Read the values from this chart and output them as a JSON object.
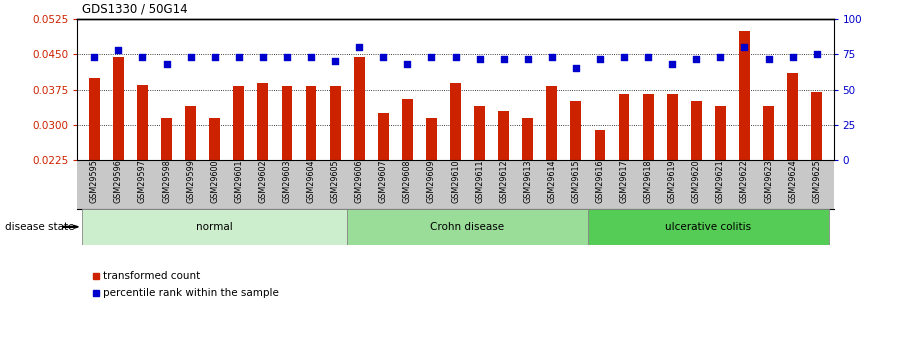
{
  "title": "GDS1330 / 50G14",
  "samples": [
    "GSM29595",
    "GSM29596",
    "GSM29597",
    "GSM29598",
    "GSM29599",
    "GSM29600",
    "GSM29601",
    "GSM29602",
    "GSM29603",
    "GSM29604",
    "GSM29605",
    "GSM29606",
    "GSM29607",
    "GSM29608",
    "GSM29609",
    "GSM29610",
    "GSM29611",
    "GSM29612",
    "GSM29613",
    "GSM29614",
    "GSM29615",
    "GSM29616",
    "GSM29617",
    "GSM29618",
    "GSM29619",
    "GSM29620",
    "GSM29621",
    "GSM29622",
    "GSM29623",
    "GSM29624",
    "GSM29625"
  ],
  "bar_values": [
    0.04,
    0.0445,
    0.0385,
    0.0315,
    0.034,
    0.0315,
    0.0383,
    0.039,
    0.0383,
    0.0383,
    0.0383,
    0.0445,
    0.0325,
    0.0355,
    0.0315,
    0.039,
    0.034,
    0.033,
    0.0315,
    0.0383,
    0.035,
    0.029,
    0.0365,
    0.0365,
    0.0365,
    0.035,
    0.034,
    0.05,
    0.034,
    0.041,
    0.037
  ],
  "dot_values": [
    73,
    78,
    73,
    68,
    73,
    73,
    73,
    73,
    73,
    73,
    70,
    80,
    73,
    68,
    73,
    73,
    72,
    72,
    72,
    73,
    65,
    72,
    73,
    73,
    68,
    72,
    73,
    80,
    72,
    73,
    75
  ],
  "groups": [
    {
      "label": "normal",
      "start": 0,
      "end": 10,
      "color": "#cceecc"
    },
    {
      "label": "Crohn disease",
      "start": 11,
      "end": 20,
      "color": "#99dd99"
    },
    {
      "label": "ulcerative colitis",
      "start": 21,
      "end": 30,
      "color": "#55cc55"
    }
  ],
  "bar_color": "#cc2200",
  "dot_color": "#0000cc",
  "ylim_left": [
    0.0225,
    0.0525
  ],
  "ylim_right": [
    0,
    100
  ],
  "yticks_left": [
    0.0225,
    0.03,
    0.0375,
    0.045,
    0.0525
  ],
  "yticks_right": [
    0,
    25,
    50,
    75,
    100
  ],
  "gridlines": [
    0.03,
    0.0375,
    0.045
  ],
  "legend_items": [
    {
      "label": "transformed count",
      "color": "#cc2200"
    },
    {
      "label": "percentile rank within the sample",
      "color": "#0000cc"
    }
  ],
  "disease_state_label": "disease state",
  "xtick_bg_color": "#c8c8c8",
  "group_border_color": "#888888"
}
